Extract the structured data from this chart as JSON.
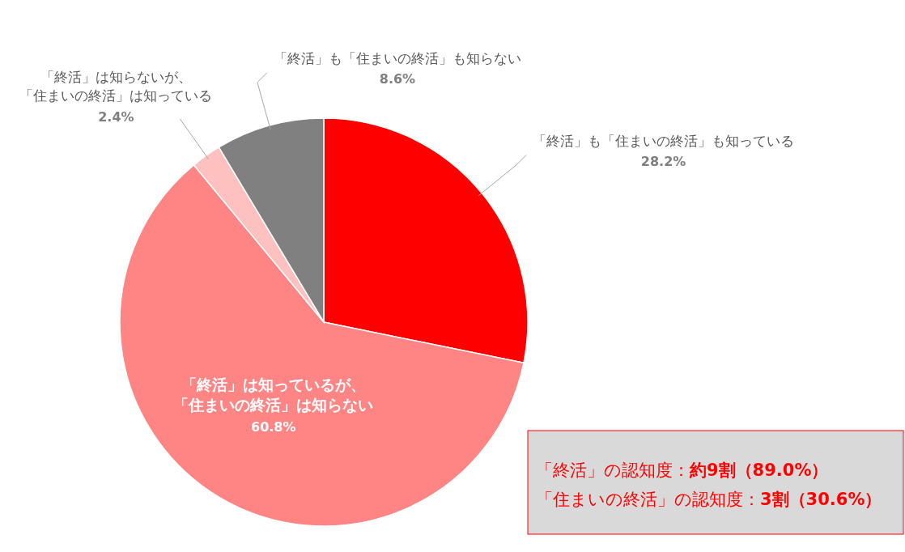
{
  "chart_data": {
    "type": "pie",
    "categories": [
      "「終活」も「住まいの終活」も知っている",
      "「終活」は知っているが、「住まいの終活」は知らない",
      "「終活」は知らないが、「住まいの終活」は知っている",
      "「終活」も「住まいの終活」も知らない"
    ],
    "values": [
      28.2,
      60.8,
      2.4,
      8.6
    ],
    "value_labels": [
      "28.2%",
      "60.8%",
      "2.4%",
      "8.6%"
    ],
    "colors": [
      "#ff0000",
      "#ff8585",
      "#ffc0c0",
      "#808080"
    ],
    "annotations": [
      "「終活」の認知度：**約9割（89.0%）**",
      "「住まいの終活」の認知度：**3割（30.6%）**"
    ]
  }
}
